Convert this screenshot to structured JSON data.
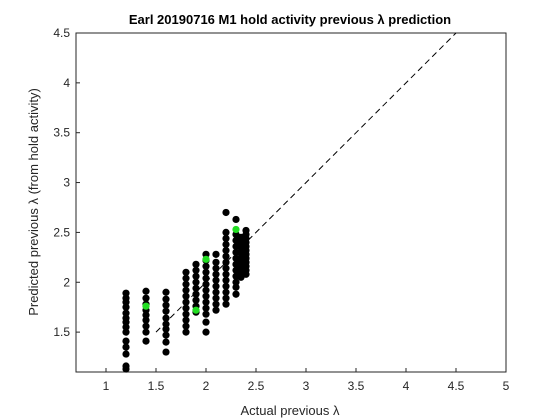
{
  "chart_data": {
    "type": "scatter",
    "title": "Earl 20190716 M1 hold activity previous λ prediction",
    "xlabel": "Actual previous λ",
    "ylabel": "Predicted previous λ (from hold activity)",
    "xlim": [
      0.7,
      5.0
    ],
    "ylim": [
      1.1,
      4.5
    ],
    "xticks": [
      "1",
      "1.5",
      "2",
      "2.5",
      "3",
      "3.5",
      "4",
      "4.5",
      "5"
    ],
    "yticks": [
      "1.5",
      "2",
      "2.5",
      "3",
      "3.5",
      "4",
      "4.5"
    ],
    "grid": false,
    "colors": {
      "points": "#000000",
      "highlight": "#22dd22",
      "reference_line": "#000000"
    },
    "reference_line": {
      "style": "dashed",
      "from": [
        1.5,
        1.5
      ],
      "to": [
        4.5,
        4.5
      ]
    },
    "series": [
      {
        "values": [
          [
            1.2,
            1.13
          ],
          [
            1.2,
            1.16
          ],
          [
            1.2,
            1.28
          ],
          [
            1.2,
            1.35
          ],
          [
            1.2,
            1.41
          ],
          [
            1.2,
            1.5
          ],
          [
            1.2,
            1.55
          ],
          [
            1.2,
            1.6
          ],
          [
            1.2,
            1.64
          ],
          [
            1.2,
            1.69
          ],
          [
            1.2,
            1.75
          ],
          [
            1.2,
            1.8
          ],
          [
            1.2,
            1.84
          ],
          [
            1.2,
            1.89
          ],
          [
            1.4,
            1.41
          ],
          [
            1.4,
            1.5
          ],
          [
            1.4,
            1.56
          ],
          [
            1.4,
            1.62
          ],
          [
            1.4,
            1.67
          ],
          [
            1.4,
            1.72
          ],
          [
            1.4,
            1.78
          ],
          [
            1.4,
            1.84
          ],
          [
            1.4,
            1.91
          ],
          [
            1.6,
            1.3
          ],
          [
            1.6,
            1.4
          ],
          [
            1.6,
            1.47
          ],
          [
            1.6,
            1.53
          ],
          [
            1.6,
            1.58
          ],
          [
            1.6,
            1.64
          ],
          [
            1.6,
            1.71
          ],
          [
            1.6,
            1.77
          ],
          [
            1.6,
            1.83
          ],
          [
            1.6,
            1.9
          ],
          [
            1.8,
            1.5
          ],
          [
            1.8,
            1.56
          ],
          [
            1.8,
            1.62
          ],
          [
            1.8,
            1.68
          ],
          [
            1.8,
            1.74
          ],
          [
            1.8,
            1.8
          ],
          [
            1.8,
            1.86
          ],
          [
            1.8,
            1.92
          ],
          [
            1.8,
            1.98
          ],
          [
            1.8,
            2.04
          ],
          [
            1.8,
            2.1
          ],
          [
            1.9,
            1.7
          ],
          [
            1.9,
            1.76
          ],
          [
            1.9,
            1.82
          ],
          [
            1.9,
            1.88
          ],
          [
            1.9,
            1.94
          ],
          [
            1.9,
            2.0
          ],
          [
            1.9,
            2.06
          ],
          [
            1.9,
            2.12
          ],
          [
            1.9,
            2.18
          ],
          [
            2.0,
            1.5
          ],
          [
            2.0,
            1.6
          ],
          [
            2.0,
            1.68
          ],
          [
            2.0,
            1.74
          ],
          [
            2.0,
            1.8
          ],
          [
            2.0,
            1.86
          ],
          [
            2.0,
            1.92
          ],
          [
            2.0,
            1.98
          ],
          [
            2.0,
            2.04
          ],
          [
            2.0,
            2.1
          ],
          [
            2.0,
            2.16
          ],
          [
            2.0,
            2.22
          ],
          [
            2.0,
            2.28
          ],
          [
            2.1,
            1.72
          ],
          [
            2.1,
            1.78
          ],
          [
            2.1,
            1.84
          ],
          [
            2.1,
            1.9
          ],
          [
            2.1,
            1.96
          ],
          [
            2.1,
            2.02
          ],
          [
            2.1,
            2.08
          ],
          [
            2.1,
            2.14
          ],
          [
            2.1,
            2.2
          ],
          [
            2.1,
            2.28
          ],
          [
            2.2,
            1.78
          ],
          [
            2.2,
            1.84
          ],
          [
            2.2,
            1.9
          ],
          [
            2.2,
            1.96
          ],
          [
            2.2,
            2.02
          ],
          [
            2.2,
            2.08
          ],
          [
            2.2,
            2.14
          ],
          [
            2.2,
            2.2
          ],
          [
            2.2,
            2.26
          ],
          [
            2.2,
            2.32
          ],
          [
            2.2,
            2.38
          ],
          [
            2.2,
            2.44
          ],
          [
            2.2,
            2.5
          ],
          [
            2.2,
            2.7
          ],
          [
            2.3,
            1.88
          ],
          [
            2.3,
            1.95
          ],
          [
            2.3,
            2.0
          ],
          [
            2.3,
            2.06
          ],
          [
            2.3,
            2.12
          ],
          [
            2.3,
            2.18
          ],
          [
            2.3,
            2.24
          ],
          [
            2.3,
            2.3
          ],
          [
            2.3,
            2.36
          ],
          [
            2.3,
            2.42
          ],
          [
            2.3,
            2.48
          ],
          [
            2.3,
            2.63
          ],
          [
            2.35,
            2.05
          ],
          [
            2.35,
            2.1
          ],
          [
            2.35,
            2.15
          ],
          [
            2.35,
            2.2
          ],
          [
            2.35,
            2.25
          ],
          [
            2.35,
            2.3
          ],
          [
            2.35,
            2.35
          ],
          [
            2.35,
            2.4
          ],
          [
            2.35,
            2.45
          ],
          [
            2.4,
            2.08
          ],
          [
            2.4,
            2.12
          ],
          [
            2.4,
            2.16
          ],
          [
            2.4,
            2.2
          ],
          [
            2.4,
            2.24
          ],
          [
            2.4,
            2.28
          ],
          [
            2.4,
            2.32
          ],
          [
            2.4,
            2.36
          ],
          [
            2.4,
            2.4
          ],
          [
            2.4,
            2.44
          ],
          [
            2.4,
            2.48
          ],
          [
            2.4,
            2.52
          ]
        ]
      },
      {
        "values": [
          [
            2.3,
            2.53
          ],
          [
            2.0,
            2.23
          ],
          [
            1.9,
            1.72
          ],
          [
            1.4,
            1.76
          ]
        ]
      }
    ]
  }
}
